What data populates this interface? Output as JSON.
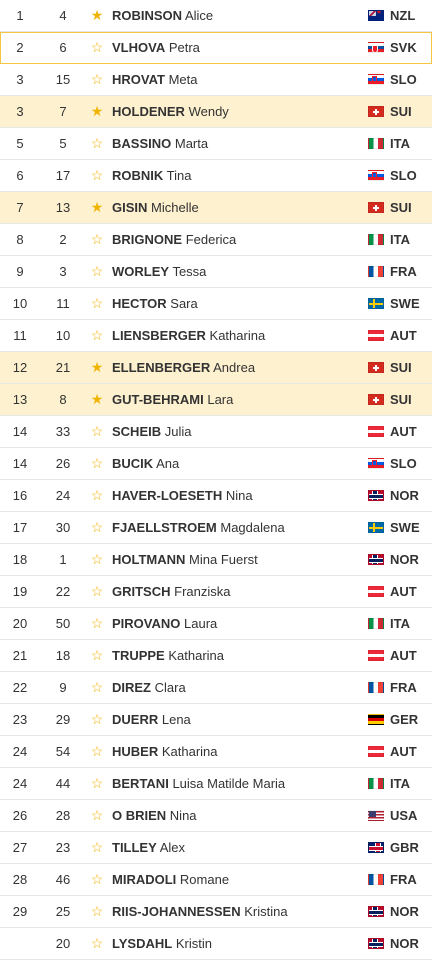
{
  "colors": {
    "highlight": "#fdf1cf",
    "star": "#f0b400",
    "selected_border": "#f5c542"
  },
  "rows": [
    {
      "rank": "1",
      "bib": "4",
      "last": "ROBINSON",
      "first": "Alice",
      "nation": "NZL",
      "highlight": false,
      "selected": false,
      "star": "filled"
    },
    {
      "rank": "2",
      "bib": "6",
      "last": "VLHOVA",
      "first": "Petra",
      "nation": "SVK",
      "highlight": false,
      "selected": true,
      "star": "outline"
    },
    {
      "rank": "3",
      "bib": "15",
      "last": "HROVAT",
      "first": "Meta",
      "nation": "SLO",
      "highlight": false,
      "selected": false,
      "star": "outline"
    },
    {
      "rank": "3",
      "bib": "7",
      "last": "HOLDENER",
      "first": "Wendy",
      "nation": "SUI",
      "highlight": true,
      "selected": false,
      "star": "filled"
    },
    {
      "rank": "5",
      "bib": "5",
      "last": "BASSINO",
      "first": "Marta",
      "nation": "ITA",
      "highlight": false,
      "selected": false,
      "star": "outline"
    },
    {
      "rank": "6",
      "bib": "17",
      "last": "ROBNIK",
      "first": "Tina",
      "nation": "SLO",
      "highlight": false,
      "selected": false,
      "star": "outline"
    },
    {
      "rank": "7",
      "bib": "13",
      "last": "GISIN",
      "first": "Michelle",
      "nation": "SUI",
      "highlight": true,
      "selected": false,
      "star": "filled"
    },
    {
      "rank": "8",
      "bib": "2",
      "last": "BRIGNONE",
      "first": "Federica",
      "nation": "ITA",
      "highlight": false,
      "selected": false,
      "star": "outline"
    },
    {
      "rank": "9",
      "bib": "3",
      "last": "WORLEY",
      "first": "Tessa",
      "nation": "FRA",
      "highlight": false,
      "selected": false,
      "star": "outline"
    },
    {
      "rank": "10",
      "bib": "11",
      "last": "HECTOR",
      "first": "Sara",
      "nation": "SWE",
      "highlight": false,
      "selected": false,
      "star": "outline"
    },
    {
      "rank": "11",
      "bib": "10",
      "last": "LIENSBERGER",
      "first": "Katharina",
      "nation": "AUT",
      "highlight": false,
      "selected": false,
      "star": "outline"
    },
    {
      "rank": "12",
      "bib": "21",
      "last": "ELLENBERGER",
      "first": "Andrea",
      "nation": "SUI",
      "highlight": true,
      "selected": false,
      "star": "filled"
    },
    {
      "rank": "13",
      "bib": "8",
      "last": "GUT-BEHRAMI",
      "first": "Lara",
      "nation": "SUI",
      "highlight": true,
      "selected": false,
      "star": "filled"
    },
    {
      "rank": "14",
      "bib": "33",
      "last": "SCHEIB",
      "first": "Julia",
      "nation": "AUT",
      "highlight": false,
      "selected": false,
      "star": "outline"
    },
    {
      "rank": "14",
      "bib": "26",
      "last": "BUCIK",
      "first": "Ana",
      "nation": "SLO",
      "highlight": false,
      "selected": false,
      "star": "outline"
    },
    {
      "rank": "16",
      "bib": "24",
      "last": "HAVER-LOESETH",
      "first": "Nina",
      "nation": "NOR",
      "highlight": false,
      "selected": false,
      "star": "outline"
    },
    {
      "rank": "17",
      "bib": "30",
      "last": "FJAELLSTROEM",
      "first": "Magdalena",
      "nation": "SWE",
      "highlight": false,
      "selected": false,
      "star": "outline"
    },
    {
      "rank": "18",
      "bib": "1",
      "last": "HOLTMANN",
      "first": "Mina Fuerst",
      "nation": "NOR",
      "highlight": false,
      "selected": false,
      "star": "outline"
    },
    {
      "rank": "19",
      "bib": "22",
      "last": "GRITSCH",
      "first": "Franziska",
      "nation": "AUT",
      "highlight": false,
      "selected": false,
      "star": "outline"
    },
    {
      "rank": "20",
      "bib": "50",
      "last": "PIROVANO",
      "first": "Laura",
      "nation": "ITA",
      "highlight": false,
      "selected": false,
      "star": "outline"
    },
    {
      "rank": "21",
      "bib": "18",
      "last": "TRUPPE",
      "first": "Katharina",
      "nation": "AUT",
      "highlight": false,
      "selected": false,
      "star": "outline"
    },
    {
      "rank": "22",
      "bib": "9",
      "last": "DIREZ",
      "first": "Clara",
      "nation": "FRA",
      "highlight": false,
      "selected": false,
      "star": "outline"
    },
    {
      "rank": "23",
      "bib": "29",
      "last": "DUERR",
      "first": "Lena",
      "nation": "GER",
      "highlight": false,
      "selected": false,
      "star": "outline"
    },
    {
      "rank": "24",
      "bib": "54",
      "last": "HUBER",
      "first": "Katharina",
      "nation": "AUT",
      "highlight": false,
      "selected": false,
      "star": "outline"
    },
    {
      "rank": "24",
      "bib": "44",
      "last": "BERTANI",
      "first": "Luisa Matilde Maria",
      "nation": "ITA",
      "highlight": false,
      "selected": false,
      "star": "outline"
    },
    {
      "rank": "26",
      "bib": "28",
      "last": "O BRIEN",
      "first": "Nina",
      "nation": "USA",
      "highlight": false,
      "selected": false,
      "star": "outline"
    },
    {
      "rank": "27",
      "bib": "23",
      "last": "TILLEY",
      "first": "Alex",
      "nation": "GBR",
      "highlight": false,
      "selected": false,
      "star": "outline"
    },
    {
      "rank": "28",
      "bib": "46",
      "last": "MIRADOLI",
      "first": "Romane",
      "nation": "FRA",
      "highlight": false,
      "selected": false,
      "star": "outline"
    },
    {
      "rank": "29",
      "bib": "25",
      "last": "RIIS-JOHANNESSEN",
      "first": "Kristina",
      "nation": "NOR",
      "highlight": false,
      "selected": false,
      "star": "outline"
    },
    {
      "rank": "",
      "bib": "20",
      "last": "LYSDAHL",
      "first": "Kristin",
      "nation": "NOR",
      "highlight": false,
      "selected": false,
      "star": "outline"
    }
  ]
}
